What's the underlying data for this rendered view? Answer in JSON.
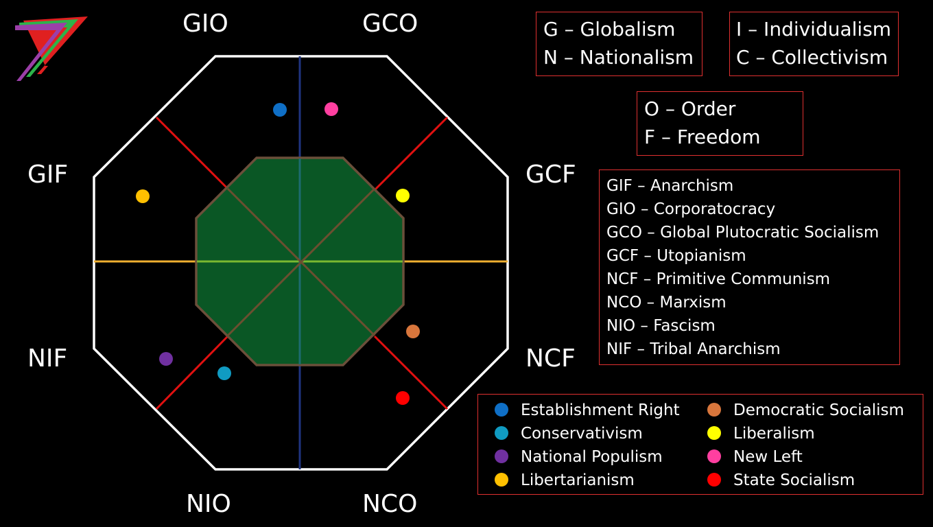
{
  "corner_labels": {
    "gio": "GIO",
    "gco": "GCO",
    "gif": "GIF",
    "gcf": "GCF",
    "nif": "NIF",
    "ncf": "NCF",
    "nio": "NIO",
    "nco": "NCO"
  },
  "axis_boxes": {
    "globalism": "G – Globalism",
    "nationalism": "N – Nationalism",
    "individualism": "I – Individualism",
    "collectivism": "C – Collectivism",
    "order": "O – Order",
    "freedom": "F – Freedom"
  },
  "ideologies": [
    "GIF – Anarchism",
    "GIO – Corporatocracy",
    "GCO – Global Plutocratic Socialism",
    "GCF – Utopianism",
    "NCF – Primitive Communism",
    "NCO – Marxism",
    "NIO – Fascism",
    "NIF – Tribal Anarchism"
  ],
  "legend": [
    {
      "label": "Establishment Right",
      "color": "#0f6fc6"
    },
    {
      "label": "Conservativism",
      "color": "#109bc2"
    },
    {
      "label": "National Populism",
      "color": "#7030a0"
    },
    {
      "label": "Libertarianism",
      "color": "#ffc000"
    },
    {
      "label": "Democratic Socialism",
      "color": "#d8763c"
    },
    {
      "label": "Liberalism",
      "color": "#ffff00"
    },
    {
      "label": "New Left",
      "color": "#ff3fa0"
    },
    {
      "label": "State Socialism",
      "color": "#ff0000"
    }
  ],
  "colors": {
    "outer_octagon": "#ffffff",
    "inner_octagon_fill": "#0a5a26",
    "inner_octagon_stroke": "#6b4f3a",
    "diagonal_lines": "#e01010",
    "horizontal_axis": "#f0b030",
    "vertical_axis": "#1f3480",
    "box_border": "#e03030",
    "logo_purple": "#9b3fa8",
    "logo_green": "#2db34a",
    "logo_red": "#e02020"
  }
}
